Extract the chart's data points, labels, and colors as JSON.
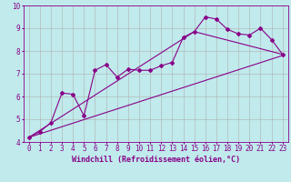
{
  "title": "",
  "xlabel": "Windchill (Refroidissement éolien,°C)",
  "ylabel": "",
  "bg_color": "#c0eaec",
  "line_color": "#880088",
  "grid_color": "#b0b0b0",
  "xlim": [
    -0.5,
    23.5
  ],
  "ylim": [
    4,
    10
  ],
  "yticks": [
    4,
    5,
    6,
    7,
    8,
    9,
    10
  ],
  "xticks": [
    0,
    1,
    2,
    3,
    4,
    5,
    6,
    7,
    8,
    9,
    10,
    11,
    12,
    13,
    14,
    15,
    16,
    17,
    18,
    19,
    20,
    21,
    22,
    23
  ],
  "line1_x": [
    0,
    1,
    2,
    3,
    4,
    5,
    6,
    7,
    8,
    9,
    10,
    11,
    12,
    13,
    14,
    15,
    16,
    17,
    18,
    19,
    20,
    21,
    22,
    23
  ],
  "line1_y": [
    4.2,
    4.45,
    4.85,
    6.15,
    6.1,
    5.15,
    7.15,
    7.4,
    6.85,
    7.2,
    7.15,
    7.15,
    7.35,
    7.5,
    8.6,
    8.85,
    9.5,
    9.4,
    8.95,
    8.75,
    8.7,
    9.0,
    8.5,
    7.85
  ],
  "line2_x": [
    0,
    23
  ],
  "line2_y": [
    4.2,
    7.8
  ],
  "line3_x": [
    0,
    15,
    23
  ],
  "line3_y": [
    4.2,
    8.85,
    7.85
  ],
  "marker": "D",
  "marker_size": 2.0,
  "line_width": 0.8,
  "xlabel_fontsize": 6.0,
  "tick_fontsize": 5.5
}
